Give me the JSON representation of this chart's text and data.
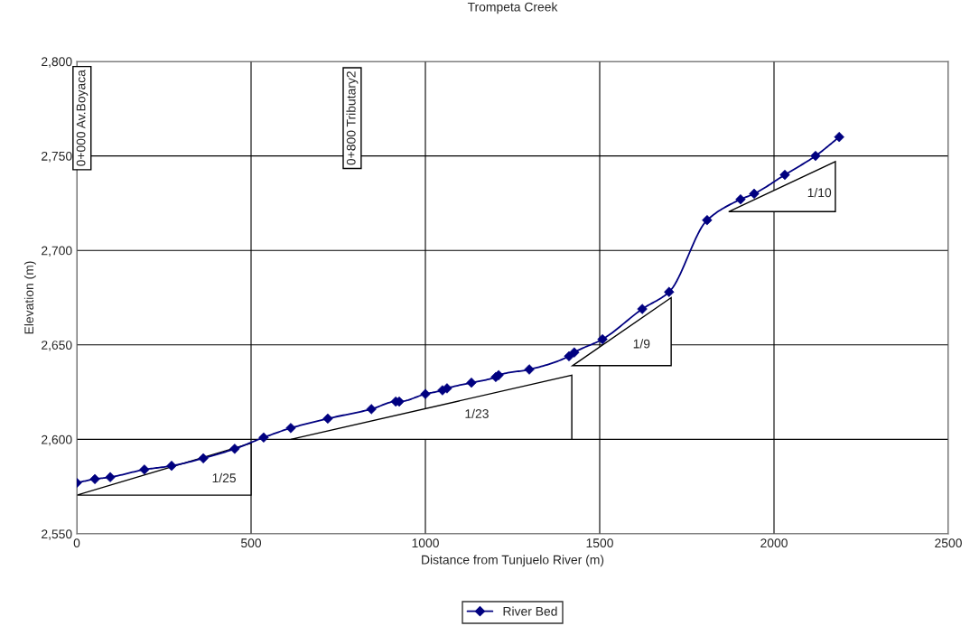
{
  "chart_data": {
    "type": "line",
    "title": "Trompeta Creek",
    "xlabel": "Distance from Tunjuelo River (m)",
    "ylabel": "Elevation (m)",
    "x": [
      0,
      52,
      96,
      194,
      272,
      363,
      453,
      536,
      614,
      720,
      845,
      915,
      925,
      1000,
      1049,
      1062,
      1132,
      1202,
      1210,
      1298,
      1412,
      1427,
      1508,
      1622,
      1699,
      1808,
      1904,
      1943,
      2031,
      2119,
      2187
    ],
    "series": [
      {
        "name": "River Bed",
        "color": "#000080",
        "values": [
          2577,
          2579,
          2580,
          2584,
          2586,
          2590,
          2595,
          2601,
          2606,
          2611,
          2616,
          2620,
          2620,
          2624,
          2626,
          2627,
          2630,
          2633,
          2634,
          2637,
          2644,
          2646,
          2653,
          2669,
          2678,
          2716,
          2727,
          2730,
          2740,
          2750,
          2760
        ]
      }
    ],
    "xlim": [
      0,
      2500
    ],
    "xticks": [
      0,
      500,
      1000,
      1500,
      2000,
      2500
    ],
    "ylim": [
      2550,
      2800
    ],
    "yticks": [
      {
        "value": 2550,
        "label": "2,550"
      },
      {
        "value": 2600,
        "label": "2,600"
      },
      {
        "value": 2650,
        "label": "2,650"
      },
      {
        "value": 2700,
        "label": "2,700"
      },
      {
        "value": 2750,
        "label": "2,750"
      },
      {
        "value": 2800,
        "label": "2,800"
      }
    ],
    "annotations": [
      "0+000 Av.Boyaca",
      "0+800 Tributary2",
      "1/25",
      "1/23",
      "1/9",
      "1/10"
    ],
    "grid": true,
    "legend": "bottom",
    "marker": "diamond",
    "line_style": "solid"
  }
}
